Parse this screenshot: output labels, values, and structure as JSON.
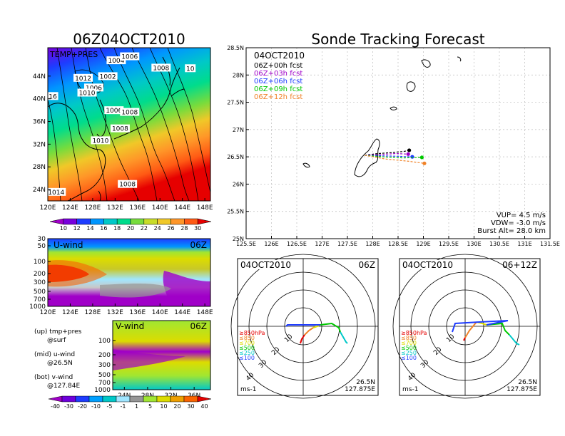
{
  "titles": {
    "left": "06Z04OCT2010",
    "right": "Sonde Tracking Forecast"
  },
  "temp_map": {
    "label": "TEMP+PRES",
    "lat_labels": [
      "44N",
      "40N",
      "36N",
      "32N",
      "28N",
      "24N"
    ],
    "lon_labels": [
      "120E",
      "124E",
      "128E",
      "132E",
      "136E",
      "140E",
      "144E",
      "148E"
    ],
    "isobar_labels": [
      {
        "text": "1004",
        "lon": 132.2,
        "lat": 46.6
      },
      {
        "text": "1006",
        "lon": 134.6,
        "lat": 47.3
      },
      {
        "text": "1008",
        "lon": 140.2,
        "lat": 45.3
      },
      {
        "text": "1012",
        "lon": 126.3,
        "lat": 43.5
      },
      {
        "text": "1002",
        "lon": 130.7,
        "lat": 43.8
      },
      {
        "text": "1006",
        "lon": 128.2,
        "lat": 41.8
      },
      {
        "text": "1010",
        "lon": 127.0,
        "lat": 40.9
      },
      {
        "text": "1006",
        "lon": 131.8,
        "lat": 37.8
      },
      {
        "text": "1008",
        "lon": 134.6,
        "lat": 37.5
      },
      {
        "text": "1008",
        "lon": 132.9,
        "lat": 34.6
      },
      {
        "text": "1010",
        "lon": 129.4,
        "lat": 32.5
      },
      {
        "text": "1008",
        "lon": 134.2,
        "lat": 24.8
      },
      {
        "text": "1014",
        "lon": 121.5,
        "lat": 23.4
      },
      {
        "text": "16",
        "lon": 120.9,
        "lat": 40.3
      },
      {
        "text": "10",
        "lon": 145.4,
        "lat": 45.2
      }
    ],
    "colorbar": {
      "labels": [
        "10",
        "12",
        "14",
        "16",
        "18",
        "20",
        "22",
        "24",
        "26",
        "28",
        "30"
      ],
      "colors": [
        "#a000c8",
        "#7800dc",
        "#1e3cff",
        "#0096ff",
        "#00c8c8",
        "#00dc8c",
        "#78dc3c",
        "#c8dc28",
        "#f0c828",
        "#ff9628",
        "#ff5a14",
        "#e60000"
      ]
    }
  },
  "u_wind": {
    "label": "U-wind",
    "time": "06Z",
    "levels": [
      "30",
      "50",
      "100",
      "200",
      "300",
      "500",
      "700",
      "1000"
    ],
    "lon_labels": [
      "120E",
      "124E",
      "128E",
      "132E",
      "136E",
      "140E",
      "144E",
      "148E"
    ]
  },
  "v_wind": {
    "label": "V-wind",
    "time": "06Z",
    "levels": [
      "100",
      "200",
      "300",
      "500",
      "700",
      "1000"
    ],
    "lat_labels": [
      "24N",
      "28N",
      "32N",
      "36N"
    ]
  },
  "legend_text": [
    {
      "line1": "(up) tmp+pres",
      "line2": "@surf"
    },
    {
      "line1": "(mid) u-wind",
      "line2": "@26.5N"
    },
    {
      "line1": "(bot) v-wind",
      "line2": "@127.84E"
    }
  ],
  "wind_colorbar": {
    "labels": [
      "-40",
      "-30",
      "-20",
      "-10",
      "-5",
      "-1",
      "1",
      "5",
      "10",
      "20",
      "30",
      "40"
    ],
    "colors": [
      "#a000c8",
      "#6e00dc",
      "#1e3cff",
      "#00a0ff",
      "#00c8c8",
      "#a0e6ff",
      "#969696",
      "#a0e632",
      "#dcdc00",
      "#f0a000",
      "#fa6400",
      "#e60000"
    ]
  },
  "track_map": {
    "date": "04OCT2010",
    "forecasts": [
      {
        "label": "06Z+00h fcst",
        "color": "#000000"
      },
      {
        "label": "06Z+03h fcst",
        "color": "#a000c8"
      },
      {
        "label": "06Z+06h fcst",
        "color": "#1e3cff"
      },
      {
        "label": "06Z+09h fcst",
        "color": "#00c800"
      },
      {
        "label": "06Z+12h fcst",
        "color": "#f08228"
      }
    ],
    "lat_labels": [
      "28.5N",
      "28N",
      "27.5N",
      "27N",
      "26.5N",
      "26N",
      "25.5N",
      "25N"
    ],
    "lon_labels": [
      "125.5E",
      "126E",
      "126.5E",
      "127E",
      "127.5E",
      "128E",
      "128.5E",
      "129E",
      "129.5E",
      "130E",
      "130.5E",
      "131E",
      "131.5E"
    ],
    "params": [
      "VUP= 4.5 m/s",
      "VDW= -3.0 m/s",
      "Burst Alt= 28.0 km"
    ]
  },
  "chart_data": [
    {
      "type": "line",
      "title": "Sonde Tracking Forecast",
      "xlabel": "",
      "ylabel": "",
      "xlim": [
        125.5,
        131.5
      ],
      "ylim": [
        25.0,
        28.5
      ],
      "grid": true,
      "legend": "top-left",
      "series": [
        {
          "name": "06Z+00h fcst",
          "x": [
            127.84,
            128.1,
            128.4,
            128.62,
            128.72
          ],
          "y": [
            26.53,
            26.56,
            26.58,
            26.6,
            26.62
          ]
        },
        {
          "name": "06Z+03h fcst",
          "x": [
            127.84,
            128.1,
            128.45,
            128.7
          ],
          "y": [
            26.53,
            26.54,
            26.56,
            26.55
          ]
        },
        {
          "name": "06Z+06h fcst",
          "x": [
            127.84,
            128.15,
            128.5,
            128.78
          ],
          "y": [
            26.53,
            26.52,
            26.51,
            26.5
          ]
        },
        {
          "name": "06Z+09h fcst",
          "x": [
            127.84,
            128.2,
            128.6,
            128.97
          ],
          "y": [
            26.53,
            26.5,
            26.48,
            26.49
          ]
        },
        {
          "name": "06Z+12h fcst",
          "x": [
            127.84,
            128.25,
            128.7,
            129.02
          ],
          "y": [
            26.53,
            26.46,
            26.42,
            26.38
          ]
        }
      ]
    }
  ],
  "hodographs": [
    {
      "date": "04OCT2010",
      "time": "06Z",
      "units": "ms-1",
      "lat": "26.5N",
      "lon": "127.875E",
      "ring_labels": [
        "10",
        "20",
        "30",
        "40"
      ],
      "level_labels": [
        {
          "text": "≥850hPa",
          "color": "#e60000"
        },
        {
          "text": "≤850",
          "color": "#f08228"
        },
        {
          "text": "≤700",
          "color": "#dcdc00"
        },
        {
          "text": "≤500",
          "color": "#00c800"
        },
        {
          "text": "≤250",
          "color": "#00c8c8"
        },
        {
          "text": "≤100",
          "color": "#1e3cff"
        }
      ]
    },
    {
      "date": "04OCT2010",
      "time": "06+12Z",
      "units": "ms-1",
      "lat": "26.5N",
      "lon": "127.875E",
      "ring_labels": [
        "10",
        "20",
        "30",
        "40"
      ],
      "level_labels": [
        {
          "text": "≥850hPa",
          "color": "#e60000"
        },
        {
          "text": "≤850",
          "color": "#f08228"
        },
        {
          "text": "≤700",
          "color": "#dcdc00"
        },
        {
          "text": "≤500",
          "color": "#00c800"
        },
        {
          "text": "≤250",
          "color": "#00c8c8"
        },
        {
          "text": "≤100",
          "color": "#1e3cff"
        }
      ]
    }
  ]
}
